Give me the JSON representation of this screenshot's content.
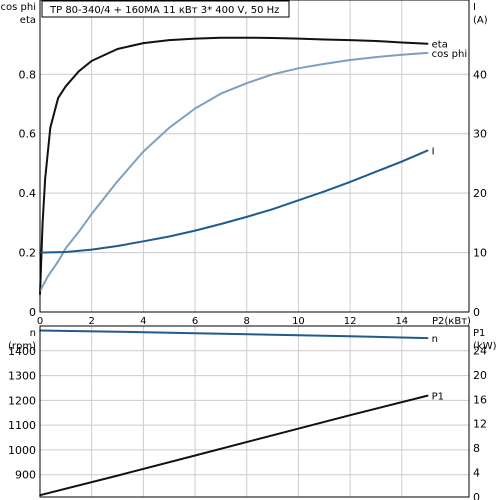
{
  "header": {
    "title": "TP 80-340/4 + 160MA    11 кВт   3* 400 V, 50 Hz"
  },
  "colors": {
    "eta": "#111111",
    "cos_phi": "#7f9fbf",
    "I": "#1f5b8f",
    "n": "#1f5b8f",
    "P1": "#111111",
    "frame": "#000000",
    "grid": "#cccccc",
    "background": "#ffffff"
  },
  "chart_data": [
    {
      "type": "line",
      "panel": "top",
      "left_axis": {
        "labels": [
          "cos phi",
          "eta"
        ],
        "ylim": [
          0,
          1.05
        ],
        "ticks": [
          {
            "v": 0.8,
            "t": "0.8"
          },
          {
            "v": 0.6,
            "t": "0.6"
          },
          {
            "v": 0.4,
            "t": "0.4"
          },
          {
            "v": 0.2,
            "t": "0.2"
          },
          {
            "v": 0,
            "t": "0"
          }
        ]
      },
      "right_axis": {
        "labels": [
          "I",
          "(A)"
        ],
        "ylim": [
          0,
          52.5
        ],
        "ticks": [
          {
            "v": 40,
            "t": "40"
          },
          {
            "v": 30,
            "t": "30"
          },
          {
            "v": 20,
            "t": "20"
          },
          {
            "v": 10,
            "t": "10"
          },
          {
            "v": 0,
            "t": "0"
          }
        ]
      },
      "x_axis": {
        "label": "P2(кВт)",
        "xlim": [
          0,
          16.6
        ],
        "ticks": [
          {
            "v": 0,
            "t": "0"
          },
          {
            "v": 2,
            "t": "2"
          },
          {
            "v": 4,
            "t": "4"
          },
          {
            "v": 6,
            "t": "6"
          },
          {
            "v": 8,
            "t": "8"
          },
          {
            "v": 10,
            "t": "10"
          },
          {
            "v": 12,
            "t": "12"
          },
          {
            "v": 14,
            "t": "14"
          }
        ]
      },
      "series": [
        {
          "name": "eta",
          "axis": "left",
          "color_key": "eta",
          "points": [
            [
              0,
              0.06
            ],
            [
              0.1,
              0.3
            ],
            [
              0.2,
              0.45
            ],
            [
              0.4,
              0.62
            ],
            [
              0.7,
              0.72
            ],
            [
              1,
              0.76
            ],
            [
              1.5,
              0.81
            ],
            [
              2,
              0.845
            ],
            [
              3,
              0.885
            ],
            [
              4,
              0.905
            ],
            [
              5,
              0.915
            ],
            [
              6,
              0.92
            ],
            [
              7,
              0.923
            ],
            [
              8,
              0.923
            ],
            [
              9,
              0.922
            ],
            [
              10,
              0.92
            ],
            [
              11,
              0.917
            ],
            [
              12,
              0.915
            ],
            [
              13,
              0.912
            ],
            [
              14,
              0.907
            ],
            [
              15,
              0.903
            ]
          ]
        },
        {
          "name": "cos phi",
          "axis": "left",
          "color_key": "cos_phi",
          "points": [
            [
              0,
              0.07
            ],
            [
              0.3,
              0.12
            ],
            [
              0.7,
              0.17
            ],
            [
              1,
              0.215
            ],
            [
              1.5,
              0.27
            ],
            [
              2,
              0.33
            ],
            [
              3,
              0.44
            ],
            [
              4,
              0.54
            ],
            [
              5,
              0.62
            ],
            [
              6,
              0.685
            ],
            [
              7,
              0.735
            ],
            [
              8,
              0.77
            ],
            [
              9,
              0.8
            ],
            [
              10,
              0.82
            ],
            [
              11,
              0.835
            ],
            [
              12,
              0.848
            ],
            [
              13,
              0.858
            ],
            [
              14,
              0.866
            ],
            [
              15,
              0.872
            ]
          ]
        },
        {
          "name": "I",
          "axis": "right",
          "color_key": "I",
          "points": [
            [
              0,
              10
            ],
            [
              1,
              10.1
            ],
            [
              2,
              10.5
            ],
            [
              3,
              11.1
            ],
            [
              4,
              11.9
            ],
            [
              5,
              12.7
            ],
            [
              6,
              13.7
            ],
            [
              7,
              14.8
            ],
            [
              8,
              16
            ],
            [
              9,
              17.3
            ],
            [
              10,
              18.8
            ],
            [
              11,
              20.3
            ],
            [
              12,
              21.9
            ],
            [
              13,
              23.6
            ],
            [
              14,
              25.3
            ],
            [
              15,
              27.2
            ]
          ]
        }
      ]
    },
    {
      "type": "line",
      "panel": "bottom",
      "left_axis": {
        "labels": [
          "n",
          "(rpm)"
        ],
        "ylim": [
          810,
          1500
        ],
        "ticks": [
          {
            "v": 1400,
            "t": "1400"
          },
          {
            "v": 1300,
            "t": "1300"
          },
          {
            "v": 1200,
            "t": "1200"
          },
          {
            "v": 1100,
            "t": "1100"
          },
          {
            "v": 1000,
            "t": "1000"
          },
          {
            "v": 900,
            "t": "900"
          }
        ]
      },
      "right_axis": {
        "labels": [
          "P1",
          "(kW)"
        ],
        "ylim": [
          0,
          28
        ],
        "ticks": [
          {
            "v": 24,
            "t": "24"
          },
          {
            "v": 20,
            "t": "20"
          },
          {
            "v": 16,
            "t": "16"
          },
          {
            "v": 12,
            "t": "12"
          },
          {
            "v": 8,
            "t": "8"
          },
          {
            "v": 4,
            "t": "4"
          },
          {
            "v": 0,
            "t": "0"
          }
        ]
      },
      "x_axis": {
        "xlim": [
          0,
          16.6
        ],
        "ticks": []
      },
      "series": [
        {
          "name": "n",
          "axis": "left",
          "color_key": "n",
          "points": [
            [
              0,
              1482
            ],
            [
              3,
              1477
            ],
            [
              6,
              1471
            ],
            [
              9,
              1465
            ],
            [
              12,
              1459
            ],
            [
              15,
              1451
            ]
          ]
        },
        {
          "name": "P1",
          "axis": "right",
          "color_key": "P1",
          "points": [
            [
              0,
              0.3
            ],
            [
              3,
              3.5
            ],
            [
              6,
              6.8
            ],
            [
              9,
              10.1
            ],
            [
              12,
              13.4
            ],
            [
              15,
              16.6
            ]
          ]
        }
      ]
    }
  ]
}
